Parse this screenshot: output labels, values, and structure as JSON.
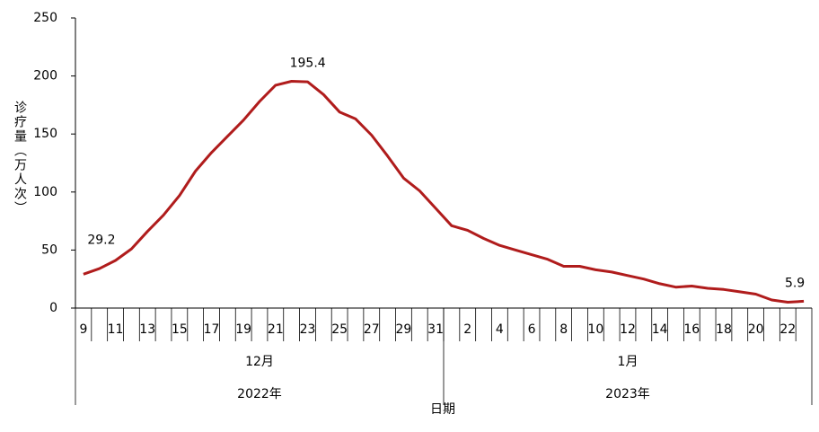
{
  "chart_data": {
    "type": "line",
    "y_label": "诊疗量（万人次）",
    "x_label": "日期",
    "color": "#b01c1c",
    "ylim": [
      0,
      250
    ],
    "yticks": [
      0,
      50,
      100,
      150,
      200,
      250
    ],
    "groups": [
      {
        "month": "12月",
        "year": "2022年",
        "categories": [
          "9",
          null,
          "11",
          null,
          "13",
          null,
          "15",
          null,
          "17",
          null,
          "19",
          null,
          "21",
          null,
          "23",
          null,
          "25",
          null,
          "27",
          null,
          "29",
          null,
          "31"
        ],
        "values": [
          29.2,
          34,
          41,
          51,
          66,
          80,
          97,
          118,
          134,
          148,
          162,
          178,
          192,
          195.4,
          195,
          184,
          169,
          163,
          149,
          131,
          112,
          101,
          86
        ],
        "value_labels": [
          "29.2",
          null,
          null,
          null,
          null,
          null,
          null,
          null,
          null,
          null,
          null,
          null,
          null,
          "195.4",
          null,
          null,
          null,
          null,
          null,
          null,
          null,
          null,
          null
        ]
      },
      {
        "month": "1月",
        "year": "2023年",
        "categories": [
          null,
          "2",
          null,
          "4",
          null,
          "6",
          null,
          "8",
          null,
          "10",
          null,
          "12",
          null,
          "14",
          null,
          "16",
          null,
          "18",
          null,
          "20",
          null,
          "22",
          null
        ],
        "values": [
          71,
          67,
          60,
          54,
          50,
          46,
          42,
          36,
          36,
          33,
          31,
          28,
          25,
          21,
          18,
          19,
          17,
          16,
          14,
          12,
          7,
          5,
          5.9
        ],
        "value_labels": [
          null,
          null,
          null,
          null,
          null,
          null,
          null,
          null,
          null,
          null,
          null,
          null,
          null,
          null,
          null,
          null,
          null,
          null,
          null,
          null,
          null,
          null,
          "5.9"
        ]
      }
    ]
  }
}
